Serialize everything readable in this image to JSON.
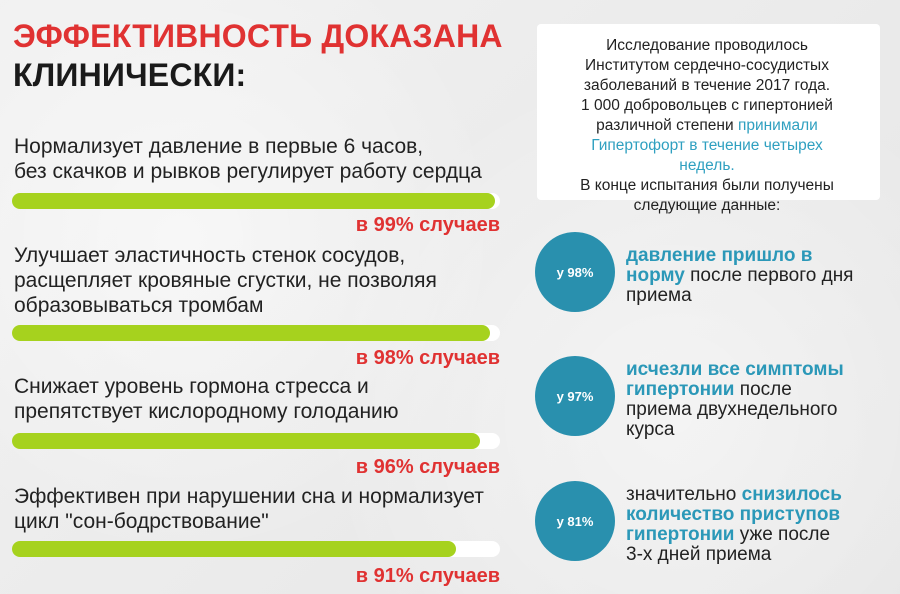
{
  "heading": {
    "line1": "ЭФФЕКТИВНОСТЬ ДОКАЗАНА",
    "line2": "КЛИНИЧЕСКИ:"
  },
  "benefits": [
    {
      "text_lines": [
        "Нормализует давление в первые 6 часов,",
        "без скачков и рывков регулирует работу сердца"
      ],
      "percent_label": "в 99% случаев",
      "fill_percent": 99
    },
    {
      "text_lines": [
        "Улучшает эластичность стенок сосудов,",
        "расщепляет кровяные сгустки, не позволяя",
        "образовываться тромбам"
      ],
      "percent_label": "в 98% случаев",
      "fill_percent": 98
    },
    {
      "text_lines": [
        "Снижает уровень гормона стресса и",
        "препятствует кислородному голоданию"
      ],
      "percent_label": "в 96% случаев",
      "fill_percent": 96
    },
    {
      "text_lines": [
        "Эффективен при нарушении сна и нормализует",
        "цикл \"сон-бодрствование\""
      ],
      "percent_label": "в 91% случаев",
      "fill_percent": 91
    }
  ],
  "study": {
    "line1": "Исследование проводилось",
    "line2": "Институтом сердечно-сосудистых",
    "line3": "заболеваний в течение 2017 года.",
    "line4": "1 000 добровольцев с гипертонией",
    "line5_plain": "различной степени ",
    "line5_accent": "принимали",
    "line6_accent": "Гипертофорт в течение четырех",
    "line7_accent": "недель.",
    "line8": "В конце испытания были получены",
    "line9": "следующие данные:"
  },
  "results": [
    {
      "badge": "у 98%",
      "bold1": "давление пришло в",
      "bold2": "норму",
      "rest2": " после первого дня",
      "rest3": "приема"
    },
    {
      "badge": "у 97%",
      "bold1": "исчезли все симптомы",
      "bold2": "гипертонии",
      "rest2": " после",
      "rest3": "приема двухнедельного",
      "rest4": "курса"
    },
    {
      "badge": "у 81%",
      "plain1": "значительно ",
      "bold1": "снизилось",
      "bold2": "количество приступов",
      "bold3": "гипертонии",
      "rest3": " уже после",
      "rest4": "3-х дней приема"
    }
  ],
  "colors": {
    "accent_red": "#e03232",
    "bar_green": "#a6d21e",
    "circle_blue": "#2990ae",
    "text_blue": "#2b98b8"
  }
}
